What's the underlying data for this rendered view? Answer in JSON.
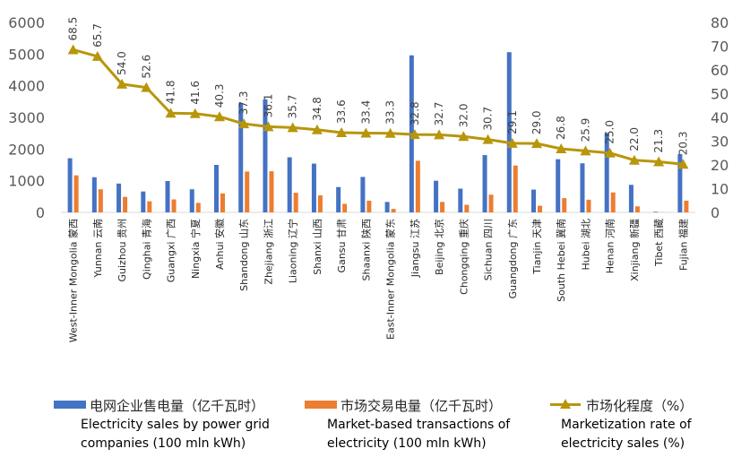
{
  "chart_data": {
    "type": "bar+line",
    "categories": [
      {
        "en": "West-Inner Mongolia",
        "zh": "蒙西"
      },
      {
        "en": "Yunnan",
        "zh": "云南"
      },
      {
        "en": "Guizhou",
        "zh": "贵州"
      },
      {
        "en": "Qinghai",
        "zh": "青海"
      },
      {
        "en": "Guangxi",
        "zh": "广西"
      },
      {
        "en": "Ningxia",
        "zh": "宁夏"
      },
      {
        "en": "Anhui",
        "zh": "安徽"
      },
      {
        "en": "Shandong",
        "zh": "山东"
      },
      {
        "en": "Zhejiang",
        "zh": "浙江"
      },
      {
        "en": "Liaoning",
        "zh": "辽宁"
      },
      {
        "en": "Shanxi",
        "zh": "山西"
      },
      {
        "en": "Gansu",
        "zh": "甘肃"
      },
      {
        "en": "Shaanxi",
        "zh": "陕西"
      },
      {
        "en": "East-Inner Mongolia",
        "zh": "蒙东"
      },
      {
        "en": "Jiangsu",
        "zh": "江苏"
      },
      {
        "en": "Beijing",
        "zh": "北京"
      },
      {
        "en": "Chongqing",
        "zh": "重庆"
      },
      {
        "en": "Sichuan",
        "zh": "四川"
      },
      {
        "en": "Guangdong",
        "zh": "广东"
      },
      {
        "en": "Tianjin",
        "zh": "天津"
      },
      {
        "en": "South Hebei",
        "zh": "冀南"
      },
      {
        "en": "Hubei",
        "zh": "湖北"
      },
      {
        "en": "Henan",
        "zh": "河南"
      },
      {
        "en": "Xinjiang",
        "zh": "新疆"
      },
      {
        "en": "Tibet",
        "zh": "西藏"
      },
      {
        "en": "Fujian",
        "zh": "福建"
      }
    ],
    "series": [
      {
        "name": "电网企业售电量（亿千瓦时）",
        "caption": "Electricity sales by power grid companies (100 mln kWh)",
        "type": "bar",
        "axis": "left",
        "color": "#4472c4",
        "values": [
          1710,
          1110,
          910,
          660,
          990,
          730,
          1500,
          3450,
          3570,
          1740,
          1540,
          800,
          1120,
          330,
          4960,
          1000,
          750,
          1810,
          5060,
          720,
          1680,
          1550,
          2510,
          870,
          20,
          1840
        ]
      },
      {
        "name": "市场交易电量（亿千瓦时）",
        "caption": "Market-based transactions of electricity (100 mln kWh)",
        "type": "bar",
        "axis": "left",
        "color": "#ed7d31",
        "values": [
          1170,
          730,
          490,
          350,
          410,
          300,
          600,
          1290,
          1300,
          620,
          540,
          270,
          370,
          110,
          1630,
          330,
          240,
          560,
          1480,
          210,
          450,
          400,
          630,
          190,
          4,
          370
        ]
      },
      {
        "name": "市场化程度（%）",
        "caption": "Marketization rate of electricity sales (%)",
        "type": "line",
        "axis": "right",
        "color": "#b8960c",
        "values": [
          68.5,
          65.7,
          54.0,
          52.6,
          41.8,
          41.6,
          40.3,
          37.3,
          36.1,
          35.7,
          34.8,
          33.6,
          33.4,
          33.3,
          32.8,
          32.7,
          32.0,
          30.7,
          29.1,
          29.0,
          26.8,
          25.9,
          25.0,
          22.0,
          21.3,
          20.3
        ],
        "labels": [
          "68.5",
          "65.7",
          "54.0",
          "52.6",
          "41.8",
          "41.6",
          "40.3",
          "37.3",
          "36.1",
          "35.7",
          "34.8",
          "33.6",
          "33.4",
          "33.3",
          "32.8",
          "32.7",
          "32.0",
          "30.7",
          "29.1",
          "29.0",
          "26.8",
          "25.9",
          "25.0",
          "22.0",
          "21.3",
          "20.3"
        ]
      }
    ],
    "y_left": {
      "ylim": [
        0,
        6000
      ],
      "ticks": [
        "0",
        "1000",
        "2000",
        "3000",
        "4000",
        "5000",
        "6000"
      ]
    },
    "y_right": {
      "ylim": [
        0,
        80
      ],
      "ticks": [
        "0",
        "10",
        "20",
        "30",
        "40",
        "50",
        "60",
        "70",
        "80"
      ]
    },
    "grid": false,
    "legend_position": "bottom"
  }
}
